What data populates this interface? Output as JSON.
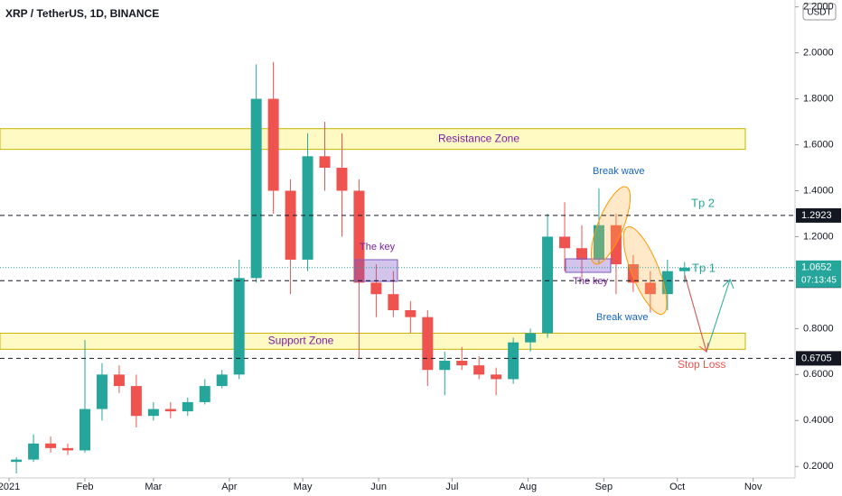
{
  "chart_data": {
    "type": "candlestick",
    "title": "XRP / TetherUS, 1D, BINANCE",
    "currency": "USDT",
    "x": [
      3,
      10,
      17,
      24,
      31,
      38,
      45,
      52,
      59,
      66,
      73,
      80,
      87,
      94,
      101,
      108,
      115,
      122,
      129,
      136,
      143,
      150,
      157,
      164,
      171,
      178,
      185,
      192,
      199,
      206,
      213,
      220,
      227,
      234,
      241,
      248,
      255,
      262,
      269,
      276
    ],
    "open": [
      0.22,
      0.23,
      0.3,
      0.28,
      0.27,
      0.45,
      0.6,
      0.55,
      0.42,
      0.45,
      0.44,
      0.48,
      0.55,
      0.6,
      1.02,
      1.8,
      1.4,
      1.1,
      1.55,
      1.5,
      1.4,
      1.0,
      0.95,
      0.88,
      0.85,
      0.62,
      0.66,
      0.64,
      0.6,
      0.58,
      0.74,
      0.78,
      1.2,
      1.15,
      1.1,
      1.25,
      1.08,
      1.0,
      0.95,
      1.05
    ],
    "high": [
      0.24,
      0.34,
      0.33,
      0.3,
      0.75,
      0.65,
      0.64,
      0.6,
      0.48,
      0.48,
      0.5,
      0.58,
      0.62,
      1.1,
      1.95,
      1.96,
      1.45,
      1.65,
      1.7,
      1.65,
      1.45,
      1.08,
      1.05,
      0.92,
      0.88,
      0.7,
      0.72,
      0.68,
      0.63,
      0.76,
      0.8,
      1.3,
      1.35,
      1.25,
      1.41,
      1.3,
      1.12,
      1.05,
      1.1,
      1.09
    ],
    "low": [
      0.17,
      0.22,
      0.26,
      0.25,
      0.26,
      0.4,
      0.52,
      0.37,
      0.4,
      0.41,
      0.42,
      0.47,
      0.54,
      0.58,
      1.0,
      1.3,
      0.95,
      1.05,
      1.4,
      1.2,
      0.67,
      0.85,
      0.85,
      0.78,
      0.55,
      0.51,
      0.62,
      0.58,
      0.51,
      0.56,
      0.7,
      0.76,
      1.05,
      1.02,
      1.08,
      0.95,
      0.96,
      0.87,
      0.88,
      1.0
    ],
    "close": [
      0.23,
      0.3,
      0.28,
      0.27,
      0.45,
      0.6,
      0.55,
      0.42,
      0.45,
      0.44,
      0.48,
      0.55,
      0.6,
      1.02,
      1.8,
      1.4,
      1.1,
      1.55,
      1.5,
      1.4,
      1.0,
      0.95,
      0.88,
      0.85,
      0.62,
      0.66,
      0.64,
      0.6,
      0.58,
      0.74,
      0.78,
      1.2,
      1.15,
      1.1,
      1.25,
      1.08,
      1.0,
      0.95,
      1.05,
      1.0652
    ],
    "up_color": "#26a69a",
    "down_color": "#ef5350",
    "xlim": [
      0,
      320
    ],
    "xticks": [
      {
        "value": 0,
        "label": "2021"
      },
      {
        "value": 31,
        "label": "Feb"
      },
      {
        "value": 59,
        "label": "Mar"
      },
      {
        "value": 90,
        "label": "Apr"
      },
      {
        "value": 120,
        "label": "May"
      },
      {
        "value": 151,
        "label": "Jun"
      },
      {
        "value": 181,
        "label": "Jul"
      },
      {
        "value": 212,
        "label": "Aug"
      },
      {
        "value": 243,
        "label": "Sep"
      },
      {
        "value": 273,
        "label": "Oct"
      },
      {
        "value": 304,
        "label": "Nov"
      }
    ],
    "ylim": [
      0.15,
      2.23
    ],
    "yticks": [
      {
        "value": 0.2,
        "label": "0.2000"
      },
      {
        "value": 0.4,
        "label": "0.4000"
      },
      {
        "value": 0.6,
        "label": "0.6000"
      },
      {
        "value": 0.8,
        "label": "0.8000"
      },
      {
        "value": 1.2,
        "label": "1.2000"
      },
      {
        "value": 1.4,
        "label": "1.4000"
      },
      {
        "value": 1.6,
        "label": "1.6000"
      },
      {
        "value": 1.8,
        "label": "1.8000"
      },
      {
        "value": 2.0,
        "label": "2.0000"
      },
      {
        "value": 2.2,
        "label": "2.2000"
      }
    ],
    "levels": [
      1.2923,
      1.0086,
      0.6705
    ],
    "last_price": 1.0652,
    "countdown": "07:13:45",
    "zones": [
      {
        "label": "Resistance Zone",
        "range": [
          1.58,
          1.67
        ]
      },
      {
        "label": "Support Zone",
        "range": [
          0.71,
          0.78
        ]
      }
    ],
    "annotations": [
      "The key",
      "The key",
      "Break wave",
      "Break wave",
      "Tp 2",
      "Tp 1",
      "Stop Loss"
    ]
  }
}
